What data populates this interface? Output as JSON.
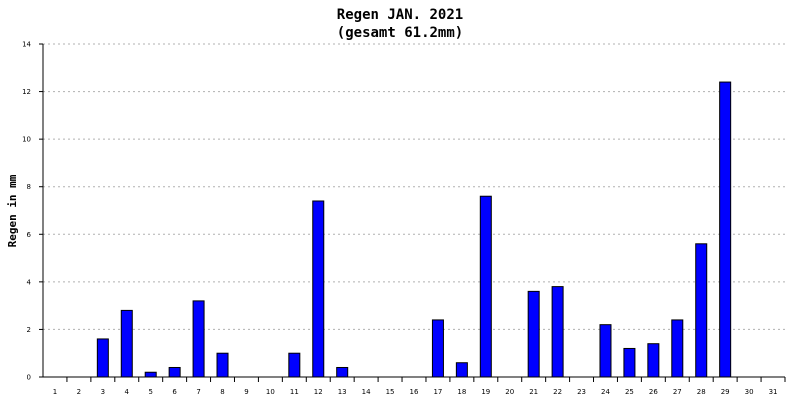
{
  "chart_data": {
    "type": "bar",
    "title": "Regen JAN. 2021",
    "subtitle": "(gesamt 61.2mm)",
    "ylabel": "Regen in mm",
    "xlabel": "",
    "ylim": [
      0,
      14
    ],
    "yticks": [
      0,
      2,
      4,
      6,
      8,
      10,
      12,
      14
    ],
    "grid": true,
    "categories": [
      "1",
      "2",
      "3",
      "4",
      "5",
      "6",
      "7",
      "8",
      "9",
      "10",
      "11",
      "12",
      "13",
      "14",
      "15",
      "16",
      "17",
      "18",
      "19",
      "20",
      "21",
      "22",
      "23",
      "24",
      "25",
      "26",
      "27",
      "28",
      "29",
      "30",
      "31"
    ],
    "values": [
      0,
      0,
      1.6,
      2.8,
      0.2,
      0.4,
      3.2,
      1.0,
      0,
      0,
      1.0,
      7.4,
      0.4,
      0,
      0,
      0,
      2.4,
      0.6,
      7.6,
      0,
      3.6,
      3.8,
      0,
      2.2,
      1.2,
      1.4,
      2.4,
      5.6,
      12.4,
      0,
      0
    ],
    "colors": {
      "bar_fill": "#0000ff",
      "bar_stroke": "#000000",
      "axis": "#000000",
      "grid": "#b0b0b0"
    }
  }
}
